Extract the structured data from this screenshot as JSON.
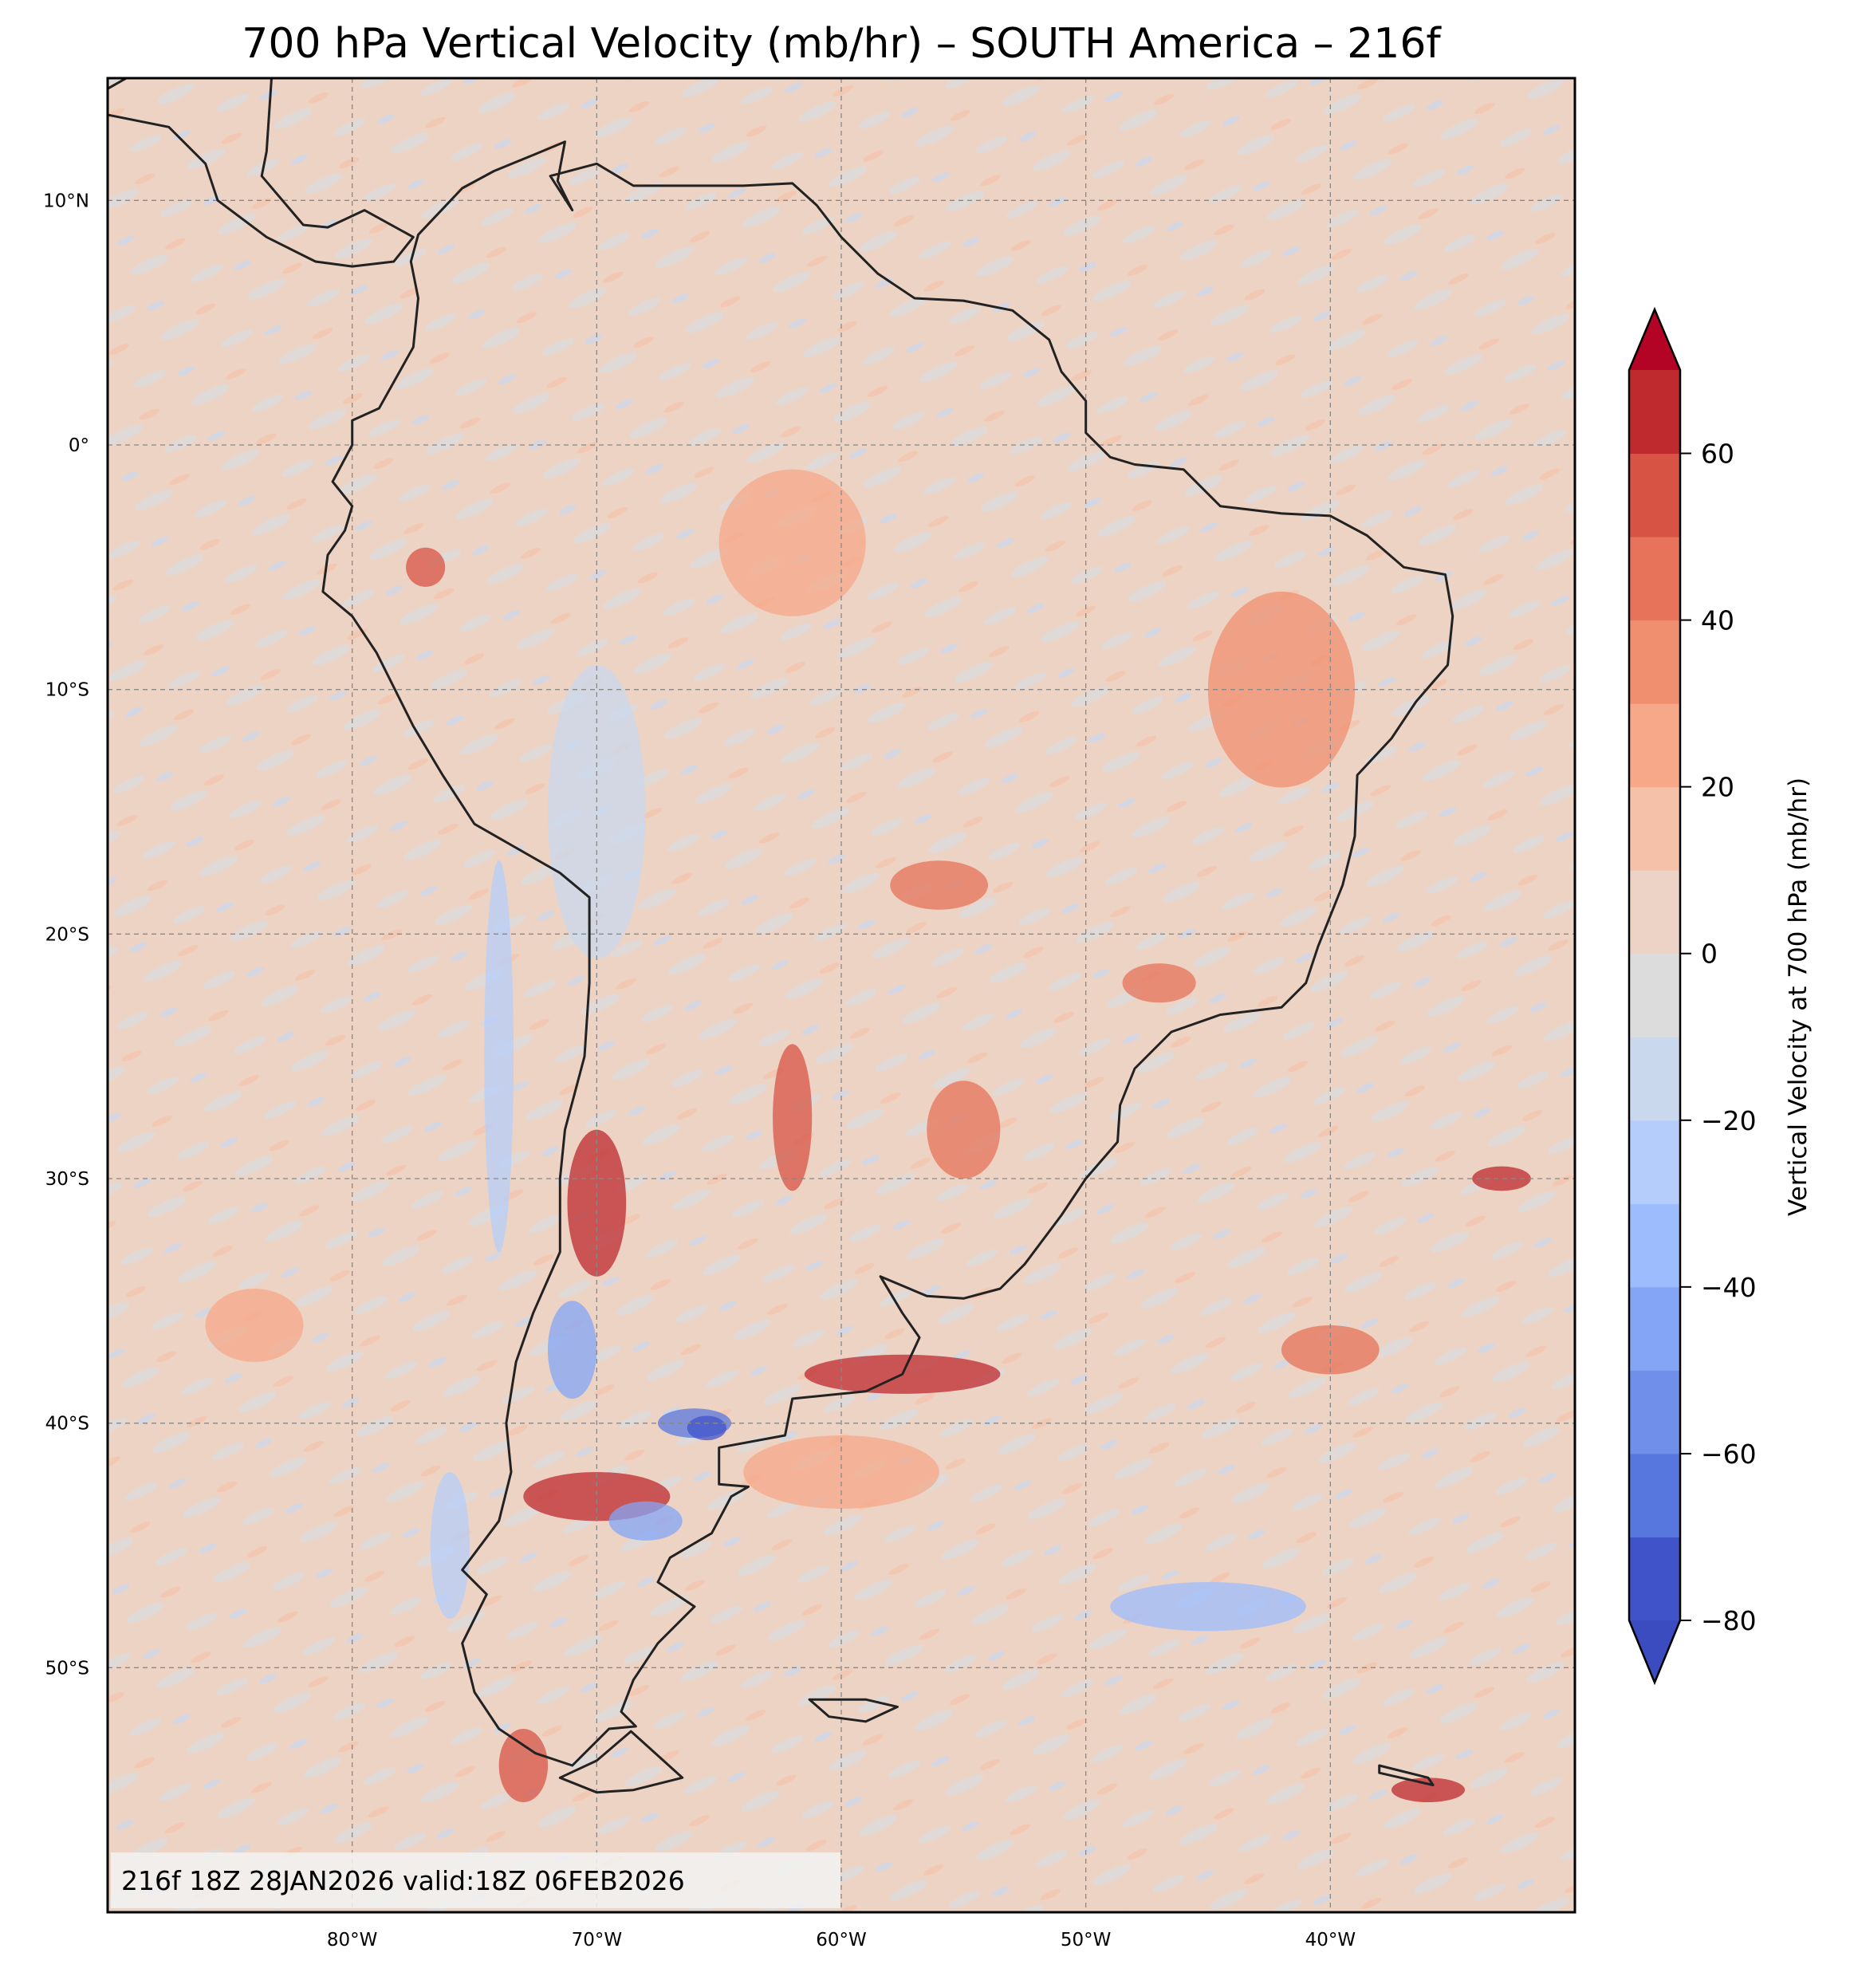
{
  "title": "700 hPa Vertical Velocity (mb/hr) – SOUTH America – 216f",
  "stamp": "216f 18Z 28JAN2026 valid:18Z 06FEB2026",
  "map": {
    "extent_lon": [
      -90,
      -30
    ],
    "extent_lat": [
      -60,
      15
    ],
    "lon_ticks": [
      {
        "v": -80,
        "label": "80°W"
      },
      {
        "v": -70,
        "label": "70°W"
      },
      {
        "v": -60,
        "label": "60°W"
      },
      {
        "v": -50,
        "label": "50°W"
      },
      {
        "v": -40,
        "label": "40°W"
      }
    ],
    "lat_ticks": [
      {
        "v": 10,
        "label": "10°N"
      },
      {
        "v": 0,
        "label": "0°"
      },
      {
        "v": -10,
        "label": "10°S"
      },
      {
        "v": -20,
        "label": "20°S"
      },
      {
        "v": -30,
        "label": "30°S"
      },
      {
        "v": -40,
        "label": "40°S"
      },
      {
        "v": -50,
        "label": "50°S"
      }
    ],
    "background_color": "#EDD3C4"
  },
  "colorbar": {
    "label": "Vertical Velocity at 700 hPa (mb/hr)",
    "levels": [
      -80,
      -70,
      -60,
      -50,
      -40,
      -30,
      -20,
      -10,
      0,
      10,
      20,
      30,
      40,
      50,
      60,
      70
    ],
    "colors": [
      "#4153C8",
      "#5877DE",
      "#6F8FEA",
      "#84A5F5",
      "#9DBCFD",
      "#B5CDFA",
      "#CAD8EE",
      "#DCDCDC",
      "#ECD3C5",
      "#F5C1A9",
      "#F6A889",
      "#F08F6F",
      "#E6735A",
      "#D75445",
      "#BE2A2E"
    ],
    "under_color": "#3B4CC0",
    "over_color": "#B40426",
    "ticks": [
      {
        "v": 60,
        "label": "60"
      },
      {
        "v": 40,
        "label": "40"
      },
      {
        "v": 20,
        "label": "20"
      },
      {
        "v": 0,
        "label": "0"
      },
      {
        "v": -20,
        "label": "−20"
      },
      {
        "v": -40,
        "label": "−40"
      },
      {
        "v": -60,
        "label": "−60"
      },
      {
        "v": -80,
        "label": "−80"
      }
    ]
  }
}
